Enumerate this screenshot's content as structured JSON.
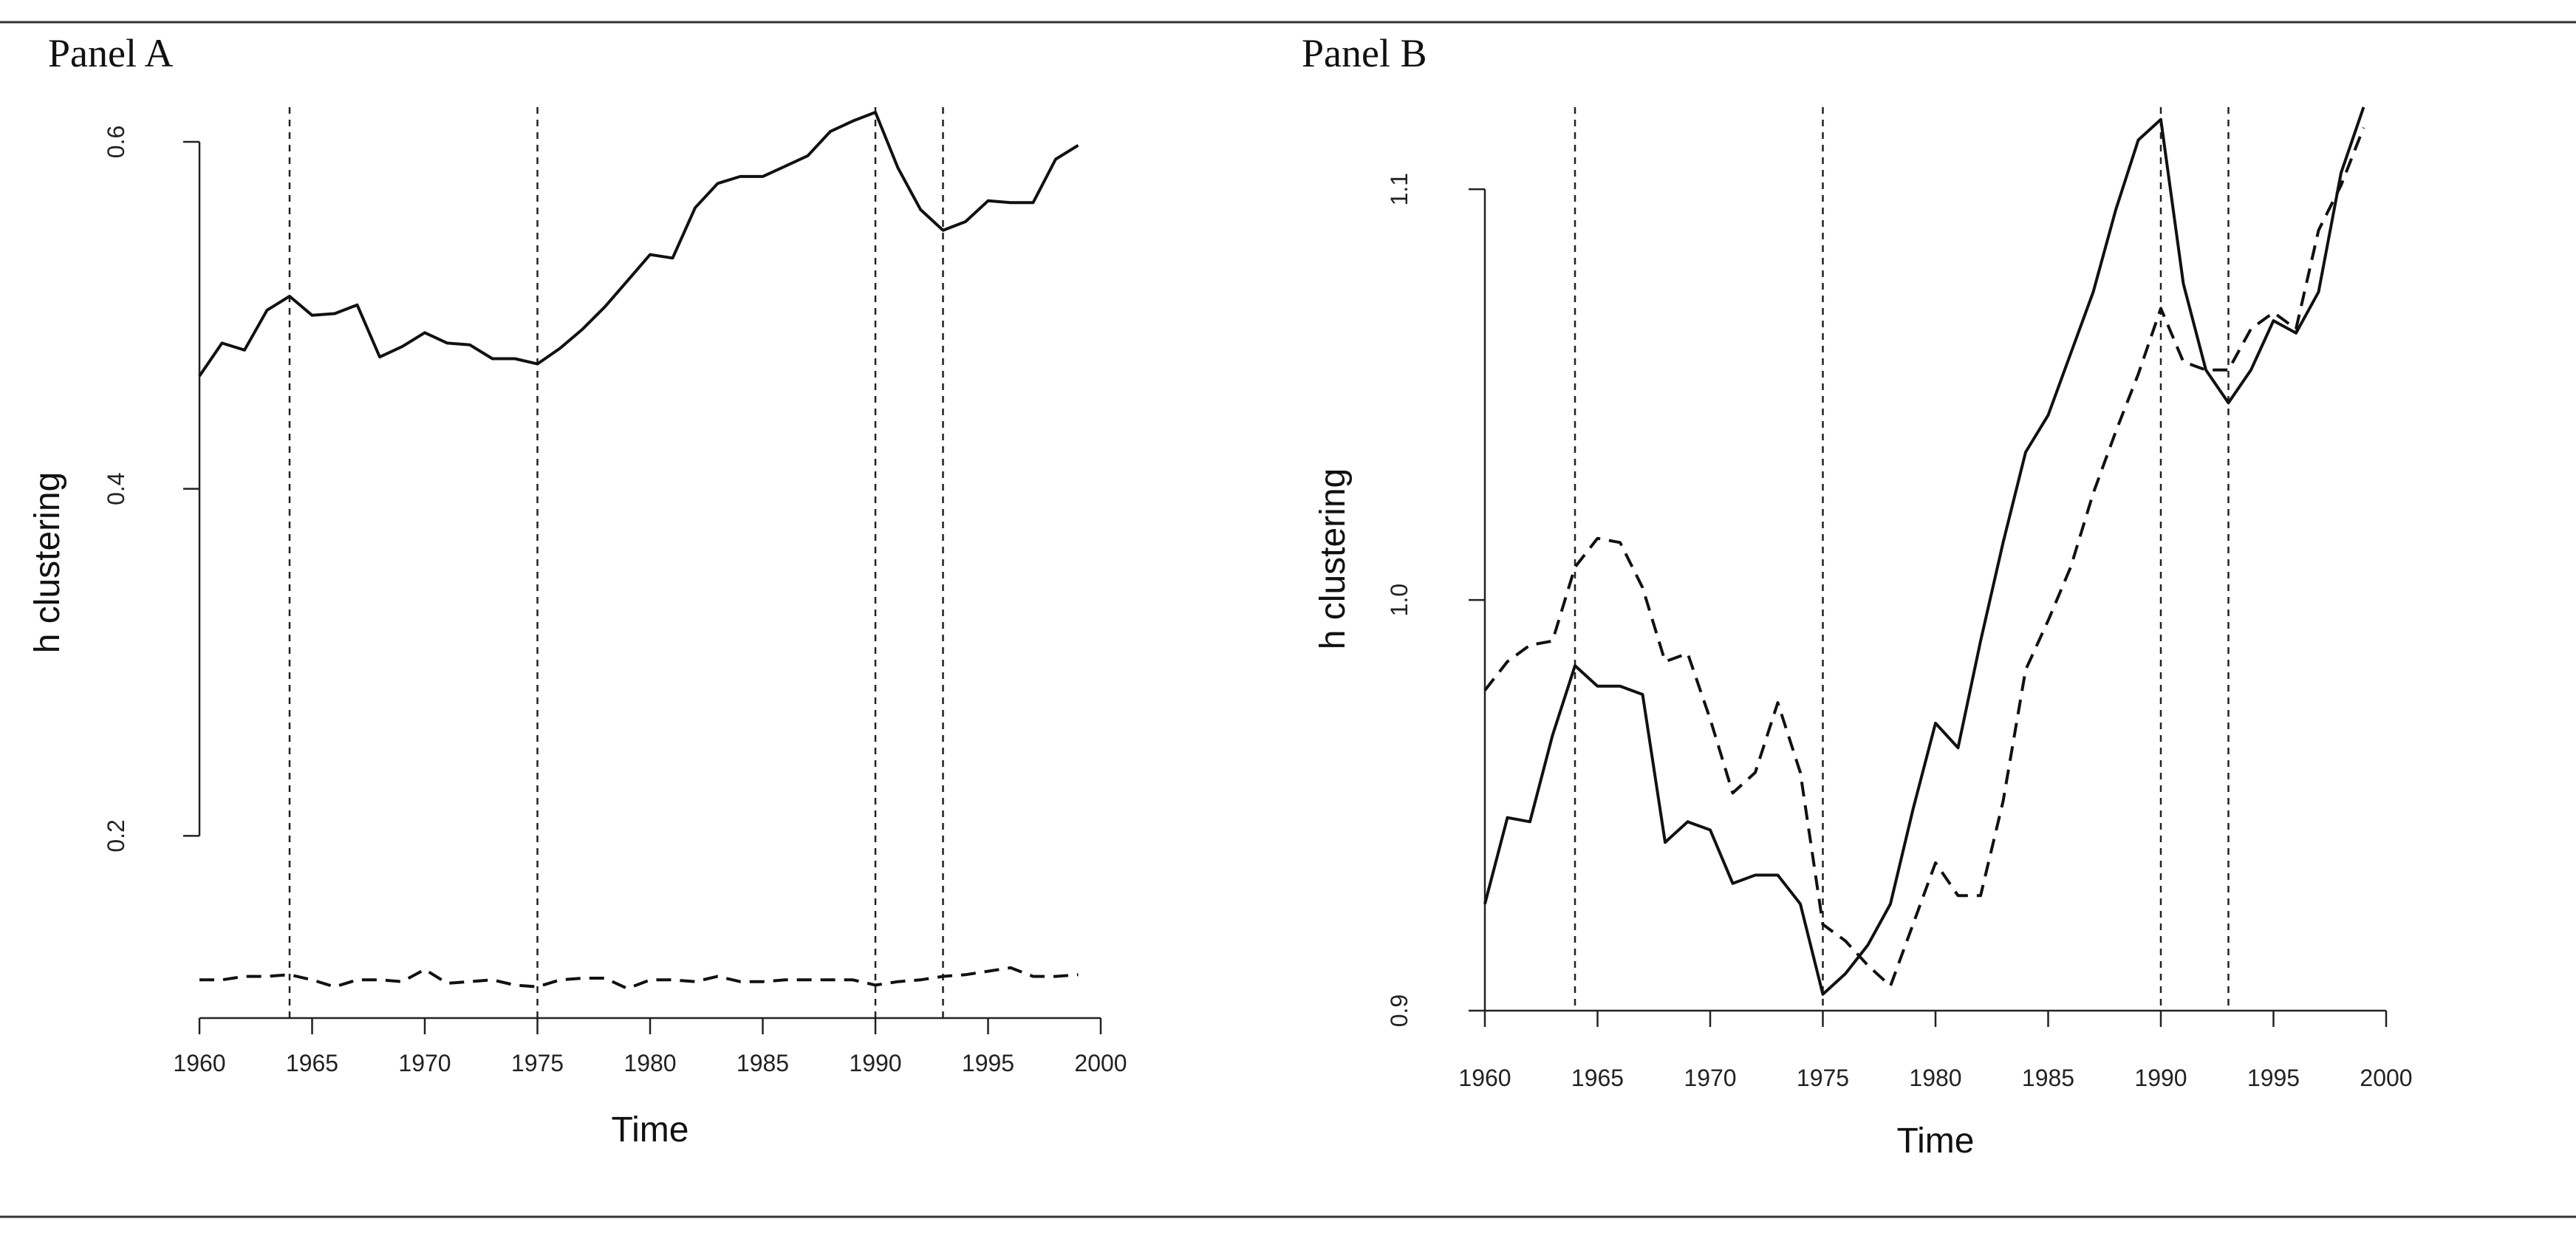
{
  "figure": {
    "panels": [
      {
        "title": "Panel A"
      },
      {
        "title": "Panel B"
      }
    ]
  },
  "chart_data": [
    {
      "type": "line",
      "title": "Panel A",
      "xlabel": "Time",
      "ylabel": "h clustering",
      "xlim": [
        1960,
        2000
      ],
      "ylim": [
        0.095,
        0.62
      ],
      "xticks": [
        1960,
        1965,
        1970,
        1975,
        1980,
        1985,
        1990,
        1995,
        2000
      ],
      "yticks": [
        0.2,
        0.4,
        0.6
      ],
      "ytick_labels": [
        "0.2",
        "0.4",
        "0.6"
      ],
      "vlines": [
        1964,
        1975,
        1990,
        1993
      ],
      "x": [
        1960,
        1961,
        1962,
        1963,
        1964,
        1965,
        1966,
        1967,
        1968,
        1969,
        1970,
        1971,
        1972,
        1973,
        1974,
        1975,
        1976,
        1977,
        1978,
        1979,
        1980,
        1981,
        1982,
        1983,
        1984,
        1985,
        1986,
        1987,
        1988,
        1989,
        1990,
        1991,
        1992,
        1993,
        1994,
        1995,
        1996,
        1997,
        1998,
        1999
      ],
      "series": [
        {
          "style": "solid",
          "values": [
            0.465,
            0.484,
            0.48,
            0.503,
            0.511,
            0.5,
            0.501,
            0.506,
            0.476,
            0.482,
            0.49,
            0.484,
            0.483,
            0.475,
            0.475,
            0.472,
            0.481,
            0.492,
            0.505,
            0.52,
            0.535,
            0.533,
            0.562,
            0.576,
            0.58,
            0.58,
            0.586,
            0.592,
            0.606,
            0.612,
            0.617,
            0.585,
            0.561,
            0.549,
            0.554,
            0.566,
            0.565,
            0.565,
            0.59,
            0.598
          ]
        },
        {
          "style": "dashed",
          "values": [
            0.117,
            0.117,
            0.119,
            0.119,
            0.12,
            0.117,
            0.113,
            0.117,
            0.117,
            0.116,
            0.123,
            0.115,
            0.116,
            0.117,
            0.114,
            0.113,
            0.117,
            0.118,
            0.118,
            0.112,
            0.117,
            0.117,
            0.116,
            0.119,
            0.116,
            0.116,
            0.117,
            0.117,
            0.117,
            0.117,
            0.114,
            0.116,
            0.117,
            0.119,
            0.12,
            0.122,
            0.124,
            0.119,
            0.119,
            0.12
          ]
        }
      ]
    },
    {
      "type": "line",
      "title": "Panel B",
      "xlabel": "Time",
      "ylabel": "h clustering",
      "xlim": [
        1960,
        2000
      ],
      "ylim": [
        0.9,
        1.12
      ],
      "xticks": [
        1960,
        1965,
        1970,
        1975,
        1980,
        1985,
        1990,
        1995,
        2000
      ],
      "yticks": [
        0.9,
        1.0,
        1.1
      ],
      "ytick_labels": [
        "0.9",
        "1.0",
        "1.1"
      ],
      "vlines": [
        1964,
        1975,
        1990,
        1993
      ],
      "x": [
        1960,
        1961,
        1962,
        1963,
        1964,
        1965,
        1966,
        1967,
        1968,
        1969,
        1970,
        1971,
        1972,
        1973,
        1974,
        1975,
        1976,
        1977,
        1978,
        1979,
        1980,
        1981,
        1982,
        1983,
        1984,
        1985,
        1986,
        1987,
        1988,
        1989,
        1990,
        1991,
        1992,
        1993,
        1994,
        1995,
        1996,
        1997,
        1998,
        1999
      ],
      "series": [
        {
          "style": "solid",
          "values": [
            0.926,
            0.947,
            0.946,
            0.967,
            0.984,
            0.979,
            0.979,
            0.977,
            0.941,
            0.946,
            0.944,
            0.931,
            0.933,
            0.933,
            0.926,
            0.904,
            0.909,
            0.916,
            0.926,
            0.949,
            0.97,
            0.964,
            0.99,
            1.014,
            1.036,
            1.045,
            1.06,
            1.075,
            1.095,
            1.112,
            1.117,
            1.077,
            1.056,
            1.048,
            1.056,
            1.068,
            1.065,
            1.075,
            1.104,
            1.12
          ]
        },
        {
          "style": "dashed",
          "values": [
            0.978,
            0.985,
            0.989,
            0.99,
            1.008,
            1.015,
            1.014,
            1.003,
            0.985,
            0.987,
            0.971,
            0.953,
            0.958,
            0.975,
            0.958,
            0.921,
            0.917,
            0.911,
            0.906,
            0.921,
            0.936,
            0.928,
            0.928,
            0.951,
            0.983,
            0.995,
            1.008,
            1.026,
            1.041,
            1.055,
            1.071,
            1.058,
            1.056,
            1.056,
            1.066,
            1.07,
            1.066,
            1.09,
            1.101,
            1.115
          ]
        }
      ]
    }
  ]
}
